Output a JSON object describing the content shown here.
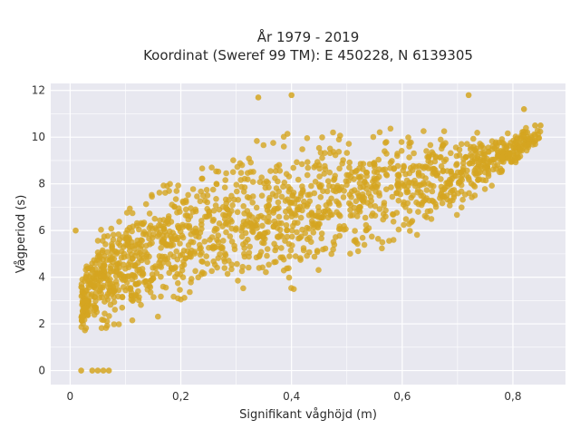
{
  "chart_data": {
    "type": "scatter",
    "title_line1": "År 1979 - 2019",
    "title_line2": "Koordinat (Sweref 99 TM): E 450228, N 6139305",
    "xlabel": "Signifikant våghöjd (m)",
    "ylabel": "Vågperiod (s)",
    "xlim": [
      -0.035,
      0.895
    ],
    "ylim": [
      -0.6,
      12.3
    ],
    "x_ticks": [
      0,
      0.2,
      0.4,
      0.6,
      0.8
    ],
    "x_tick_labels": [
      "0",
      "0,2",
      "0,4",
      "0,6",
      "0,8"
    ],
    "y_ticks": [
      0,
      2,
      4,
      6,
      8,
      10,
      12
    ],
    "y_tick_labels": [
      "0",
      "2",
      "4",
      "6",
      "8",
      "10",
      "12"
    ],
    "grid": true,
    "colors": {
      "marker": "#D4A520",
      "plot_bg": "#E8E8F0",
      "grid": "#ffffff"
    },
    "density_envelope": [
      {
        "x": 0.02,
        "y_min": 1.2,
        "y_max": 4.5
      },
      {
        "x": 0.05,
        "y_min": 1.2,
        "y_max": 6.5
      },
      {
        "x": 0.1,
        "y_min": 1.3,
        "y_max": 7.5
      },
      {
        "x": 0.15,
        "y_min": 1.7,
        "y_max": 8.3
      },
      {
        "x": 0.2,
        "y_min": 2.2,
        "y_max": 9.0
      },
      {
        "x": 0.3,
        "y_min": 2.6,
        "y_max": 10.0
      },
      {
        "x": 0.4,
        "y_min": 3.1,
        "y_max": 10.5
      },
      {
        "x": 0.5,
        "y_min": 3.9,
        "y_max": 10.9
      },
      {
        "x": 0.6,
        "y_min": 5.0,
        "y_max": 10.9
      },
      {
        "x": 0.7,
        "y_min": 6.5,
        "y_max": 10.6
      },
      {
        "x": 0.8,
        "y_min": 8.3,
        "y_max": 10.5
      },
      {
        "x": 0.85,
        "y_min": 9.8,
        "y_max": 10.5
      }
    ],
    "notable_points": [
      {
        "x": 0.02,
        "y": 0
      },
      {
        "x": 0.04,
        "y": 0
      },
      {
        "x": 0.05,
        "y": 0
      },
      {
        "x": 0.06,
        "y": 0
      },
      {
        "x": 0.07,
        "y": 0
      },
      {
        "x": 0.34,
        "y": 11.7
      },
      {
        "x": 0.4,
        "y": 11.8
      },
      {
        "x": 0.72,
        "y": 11.8
      },
      {
        "x": 0.84,
        "y": 10.5
      },
      {
        "x": 0.85,
        "y": 10.5
      },
      {
        "x": 0.82,
        "y": 11.2
      },
      {
        "x": 0.01,
        "y": 6.0
      }
    ]
  }
}
